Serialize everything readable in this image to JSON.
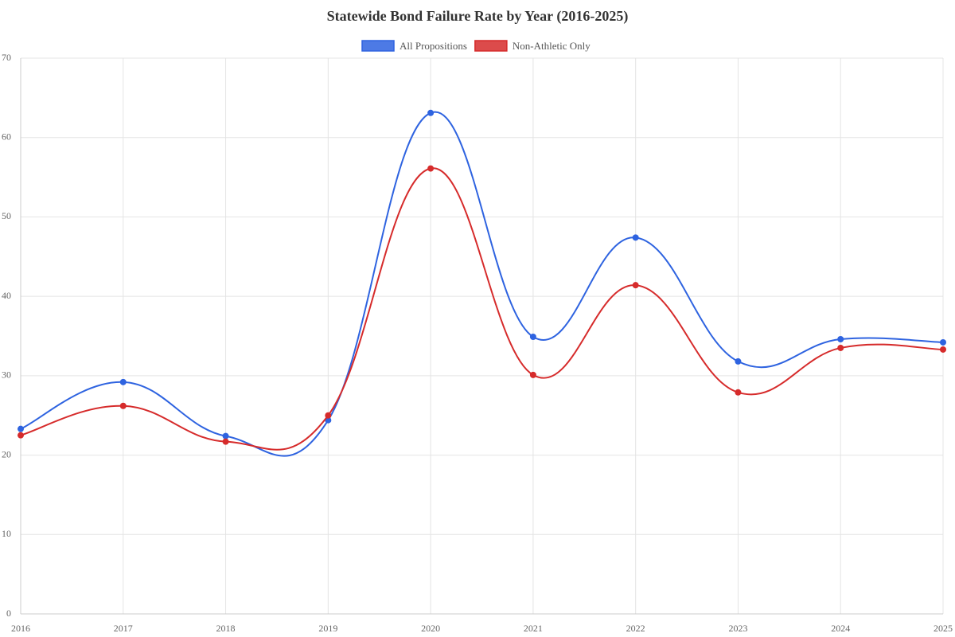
{
  "chart_data": {
    "type": "line",
    "title": "Statewide Bond Failure Rate by Year (2016-2025)",
    "categories": [
      "2016",
      "2017",
      "2018",
      "2019",
      "2020",
      "2021",
      "2022",
      "2023",
      "2024",
      "2025"
    ],
    "series": [
      {
        "name": "All Propositions",
        "color": "#2e63e0",
        "values": [
          23.3,
          29.2,
          22.4,
          24.4,
          63.1,
          34.9,
          47.4,
          31.8,
          34.6,
          34.2
        ]
      },
      {
        "name": "Non-Athletic Only",
        "color": "#d62b2b",
        "values": [
          22.5,
          26.2,
          21.7,
          25.0,
          56.1,
          30.1,
          41.4,
          27.9,
          33.5,
          33.3
        ]
      }
    ],
    "ylim": [
      0,
      70
    ],
    "yticks": [
      0,
      10,
      20,
      30,
      40,
      50,
      60,
      70
    ],
    "grid": true,
    "legend": "top"
  }
}
